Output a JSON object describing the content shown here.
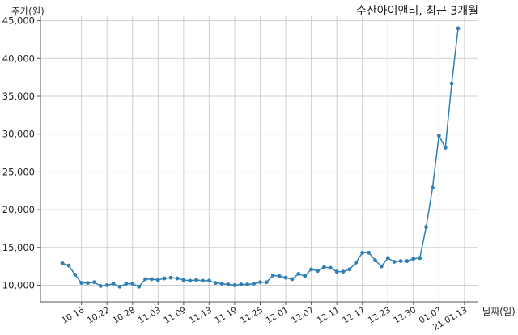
{
  "chart_data": {
    "type": "line",
    "title": "수산아이앤티, 최근 3개월",
    "ylabel": "주가(원)",
    "xlabel": "날짜(일)",
    "ylim": [
      7800,
      45600
    ],
    "grid": true,
    "line_color": "#2f7fb5",
    "y_ticks": [
      10000,
      15000,
      20000,
      25000,
      30000,
      35000,
      40000,
      45000
    ],
    "y_tick_labels": [
      "10,000",
      "15,000",
      "20,000",
      "25,000",
      "30,000",
      "35,000",
      "40,000",
      "45,000"
    ],
    "x_ticks": [
      {
        "label": "10.16",
        "index": 3
      },
      {
        "label": "10.22",
        "index": 7
      },
      {
        "label": "10.28",
        "index": 11
      },
      {
        "label": "11.03",
        "index": 15
      },
      {
        "label": "11.09",
        "index": 19
      },
      {
        "label": "11.13",
        "index": 23
      },
      {
        "label": "11.19",
        "index": 27
      },
      {
        "label": "11.25",
        "index": 31
      },
      {
        "label": "12.01",
        "index": 35
      },
      {
        "label": "12.07",
        "index": 39
      },
      {
        "label": "12.11",
        "index": 43
      },
      {
        "label": "12.17",
        "index": 47
      },
      {
        "label": "12.23",
        "index": 51
      },
      {
        "label": "12.30",
        "index": 55
      },
      {
        "label": "01.07",
        "index": 59
      },
      {
        "label": "21.01.13",
        "index": 63
      }
    ],
    "series": [
      {
        "values": [
          12900,
          12600,
          11400,
          10300,
          10300,
          10400,
          9900,
          10000,
          10200,
          9800,
          10200,
          10200,
          9800,
          10800,
          10800,
          10700,
          10900,
          11000,
          10900,
          10700,
          10600,
          10700,
          10600,
          10600,
          10300,
          10200,
          10100,
          10000,
          10100,
          10100,
          10200,
          10400,
          10400,
          11300,
          11200,
          11000,
          10800,
          11500,
          11200,
          12100,
          11900,
          12400,
          12300,
          11800,
          11800,
          12100,
          13000,
          14300,
          14300,
          13300,
          12500,
          13600,
          13100,
          13200,
          13200,
          13500,
          13600,
          17700,
          22900,
          29800,
          28200,
          36700,
          44000
        ]
      }
    ]
  }
}
